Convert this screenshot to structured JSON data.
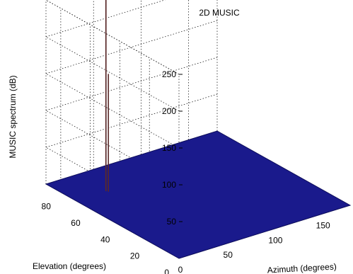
{
  "chart_data": {
    "type": "surface",
    "title": "2D MUSIC",
    "xlabel": "Azimuth (degrees)",
    "ylabel": "Elevation (degrees)",
    "zlabel": "MUSIC spectrum (dB)",
    "xlim": [
      0,
      180
    ],
    "ylim": [
      0,
      90
    ],
    "zlim": [
      0,
      250
    ],
    "x_ticks": [
      0,
      50,
      100,
      150
    ],
    "y_ticks": [
      0,
      20,
      40,
      60,
      80
    ],
    "z_ticks": [
      50,
      100,
      150,
      200,
      250
    ],
    "grid": true,
    "surface_color": "#1a1a8c",
    "peak_color": "#5a2a2a",
    "peaks": [
      {
        "azimuth": 32,
        "elevation": 70,
        "value": 270
      },
      {
        "azimuth": 35,
        "elevation": 72,
        "value": 268
      },
      {
        "azimuth": 33,
        "elevation": 69,
        "value": 160
      }
    ]
  }
}
